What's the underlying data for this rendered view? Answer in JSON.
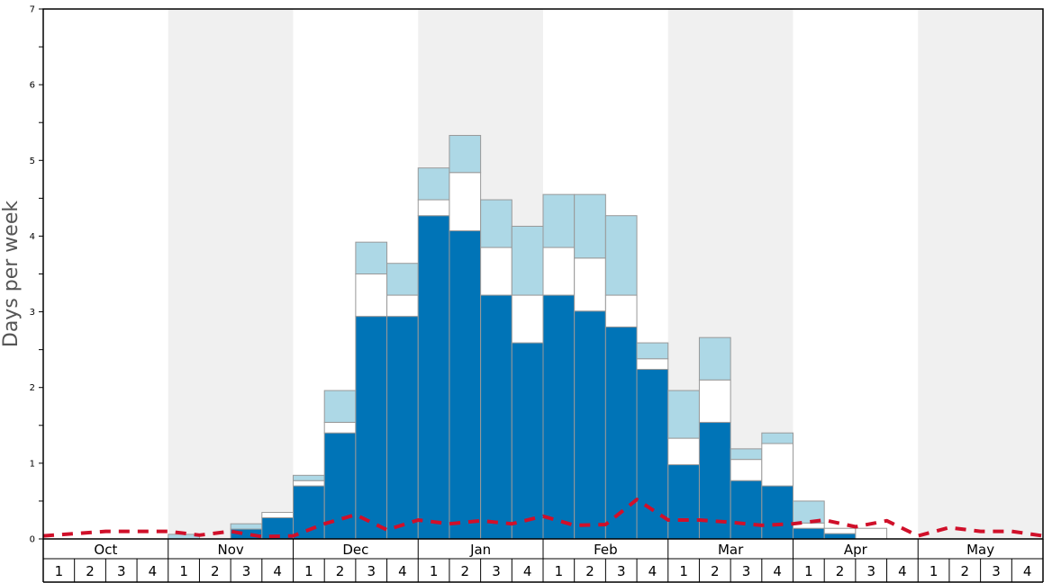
{
  "chart_data": {
    "type": "bar",
    "ylabel": "Days per week",
    "xlabel": "",
    "ylim": [
      0,
      7
    ],
    "y_ticks": [
      "0",
      "1",
      "2",
      "3",
      "4",
      "5",
      "6",
      "7"
    ],
    "months": [
      "Oct",
      "Nov",
      "Dec",
      "Jan",
      "Feb",
      "Mar",
      "Apr",
      "May"
    ],
    "week_labels": [
      "1",
      "2",
      "3",
      "4"
    ],
    "stacked": true,
    "colors": {
      "series_bottom": "#0074b7",
      "series_middle": "#ffffff",
      "series_top": "#add8e6",
      "dashed_line": "#d0102a",
      "shade": "#f0f0f0",
      "bar_stroke": "#999999"
    },
    "series": [
      {
        "values": [
          0,
          0,
          0,
          0,
          0,
          0,
          0.13,
          0.28,
          0.7,
          1.4,
          2.94,
          2.94,
          4.27,
          4.07,
          3.22,
          2.59,
          3.22,
          3.01,
          2.8,
          2.24,
          0.98,
          1.54,
          0.77,
          0.7,
          0.14,
          0.07,
          0,
          0,
          0,
          0,
          0,
          0
        ]
      },
      {
        "values": [
          0,
          0,
          0,
          0,
          0,
          0,
          0,
          0.07,
          0.07,
          0.14,
          0.56,
          0.28,
          0.21,
          0.77,
          0.63,
          0.63,
          0.63,
          0.7,
          0.42,
          0.14,
          0.35,
          0.56,
          0.28,
          0.56,
          0.07,
          0.07,
          0.14,
          0,
          0,
          0,
          0,
          0
        ]
      },
      {
        "values": [
          0,
          0,
          0,
          0,
          0.06,
          0,
          0.07,
          0,
          0.07,
          0.42,
          0.42,
          0.42,
          0.42,
          0.49,
          0.63,
          0.91,
          0.7,
          0.84,
          1.05,
          0.21,
          0.63,
          0.56,
          0.14,
          0.14,
          0.29,
          0,
          0,
          0,
          0,
          0,
          0,
          0
        ]
      }
    ],
    "dashed_line_values": [
      0.04,
      0.07,
      0.1,
      0.1,
      0.1,
      0.05,
      0.1,
      0.03,
      0.04,
      0.2,
      0.32,
      0.12,
      0.25,
      0.2,
      0.24,
      0.2,
      0.3,
      0.18,
      0.19,
      0.52,
      0.25,
      0.25,
      0.22,
      0.18,
      0.2,
      0.25,
      0.16,
      0.24,
      0.04,
      0.15,
      0.1,
      0.1,
      0.04
    ],
    "shaded_months": [
      "Nov",
      "Jan",
      "Mar",
      "May"
    ],
    "grid": false,
    "legend": "none"
  }
}
